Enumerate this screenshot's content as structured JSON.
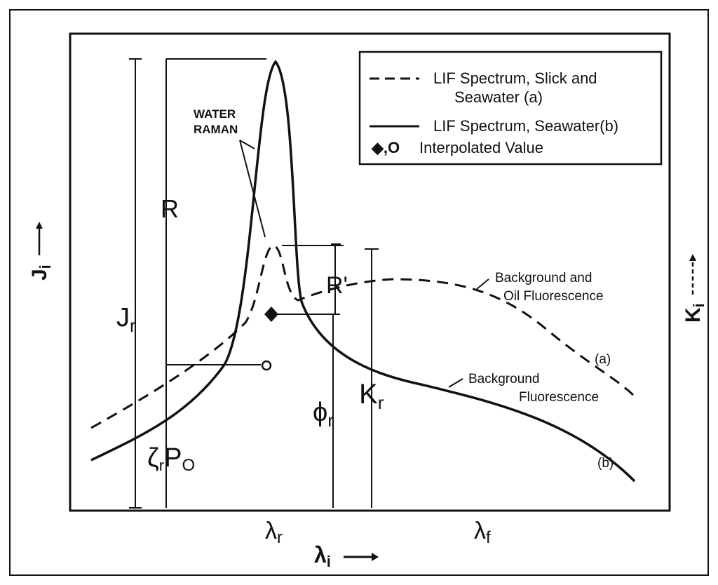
{
  "legend": {
    "dashed_label_line1": "LIF Spectrum, Slick and",
    "dashed_label_line2": "Seawater (a)",
    "solid_label": "LIF Spectrum, Seawater(b)",
    "marker_symbols": "◆,O",
    "marker_label": "Interpolated Value"
  },
  "annotations": {
    "water_raman_line1": "WATER",
    "water_raman_line2": "RAMAN",
    "R": "R",
    "R_prime": "R'",
    "J_r_main": "J",
    "J_r_sub": "r",
    "K_r_main": "K",
    "K_r_sub": "r",
    "phi_r_main": "ϕ",
    "phi_r_sub": "r",
    "zeta_main": "ζ",
    "zeta_sub": "r",
    "P_main": "P",
    "P_sub": "O",
    "bg_oil_line1": "Background and",
    "bg_oil_line2": "Oil Fluorescence",
    "bg_line1": "Background",
    "bg_line2": "Fluorescence",
    "curve_a": "(a)",
    "curve_b": "(b)"
  },
  "axes": {
    "y_left_main": "J",
    "y_left_sub": "i",
    "y_right_main": "K",
    "y_right_sub": "i",
    "x_main": "λ",
    "x_sub": "i",
    "tick_lambda_r_main": "λ",
    "tick_lambda_r_sub": "r",
    "tick_lambda_f_main": "λ",
    "tick_lambda_f_sub": "f"
  },
  "colors": {
    "ink": "#111111",
    "background": "#ffffff"
  }
}
